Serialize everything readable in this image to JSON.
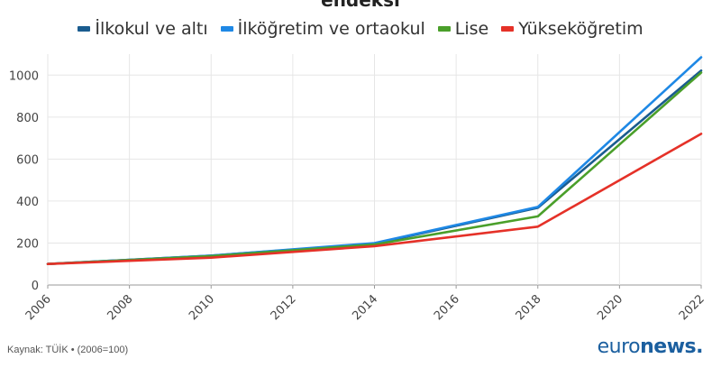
{
  "chart_data": {
    "type": "line",
    "title": "endeksi",
    "xlabel": "",
    "ylabel": "",
    "xlim": [
      2006,
      2022
    ],
    "ylim": [
      0,
      1100
    ],
    "x_ticks": [
      "2006",
      "2008",
      "2010",
      "2012",
      "2014",
      "2016",
      "2018",
      "2020",
      "2022"
    ],
    "y_ticks": [
      "0",
      "200",
      "400",
      "600",
      "800",
      "1000"
    ],
    "grid": true,
    "legend_position": "top",
    "series": [
      {
        "name": "İlkokul ve altı",
        "color": "#1a5c8f",
        "x": [
          2006,
          2010,
          2014,
          2018,
          2022
        ],
        "y": [
          100,
          140,
          197,
          368,
          1022
        ]
      },
      {
        "name": "İlköğretim ve ortaokul",
        "color": "#1e88e5",
        "x": [
          2006,
          2010,
          2014,
          2018,
          2022
        ],
        "y": [
          100,
          140,
          200,
          372,
          1085
        ]
      },
      {
        "name": "Lise",
        "color": "#4a9f2a",
        "x": [
          2006,
          2010,
          2014,
          2018,
          2022
        ],
        "y": [
          100,
          138,
          193,
          327,
          1012
        ]
      },
      {
        "name": "Yükseköğretim",
        "color": "#e53128",
        "x": [
          2006,
          2010,
          2014,
          2018,
          2022
        ],
        "y": [
          100,
          130,
          185,
          278,
          720
        ]
      }
    ]
  },
  "footer": {
    "source": "Kaynak: TÜİK • (2006=100)",
    "brand_regular": "euro",
    "brand_bold": "news."
  }
}
